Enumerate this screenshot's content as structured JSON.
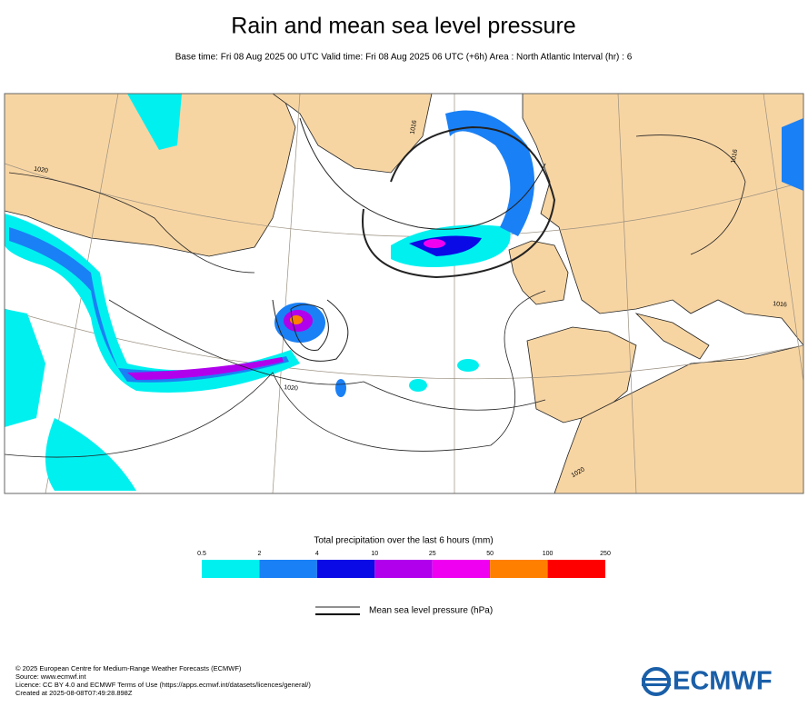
{
  "header": {
    "title": "Rain and mean sea level pressure",
    "subtitle": "Base time: Fri 08 Aug 2025 00 UTC Valid time: Fri 08 Aug 2025 06 UTC (+6h) Area : North Atlantic Interval (hr) : 6"
  },
  "map": {
    "isobar_labels": [
      "1020",
      "1020",
      "1016",
      "1016",
      "1020",
      "1016"
    ]
  },
  "colorbar": {
    "title": "Total precipitation over the last 6 hours (mm)",
    "ticks": [
      0.5,
      2,
      4,
      10,
      25,
      50,
      100,
      250
    ],
    "colors": [
      "#00f0f0",
      "#1a80f5",
      "#0a0ae6",
      "#b000ec",
      "#f000f0",
      "#ff8000",
      "#ff0000"
    ]
  },
  "line_legend": {
    "label": "Mean sea level pressure (hPa)"
  },
  "footer": {
    "lines": [
      "© 2025 European Centre for Medium-Range Weather Forecasts (ECMWF)",
      "Source: www.ecmwf.int",
      "Licence: CC BY 4.0 and ECMWF Terms of Use (https://apps.ecmwf.int/datasets/licences/general/)",
      "Created at 2025-08-08T07:49:28.898Z"
    ]
  },
  "logo": {
    "text": "ECMWF"
  }
}
